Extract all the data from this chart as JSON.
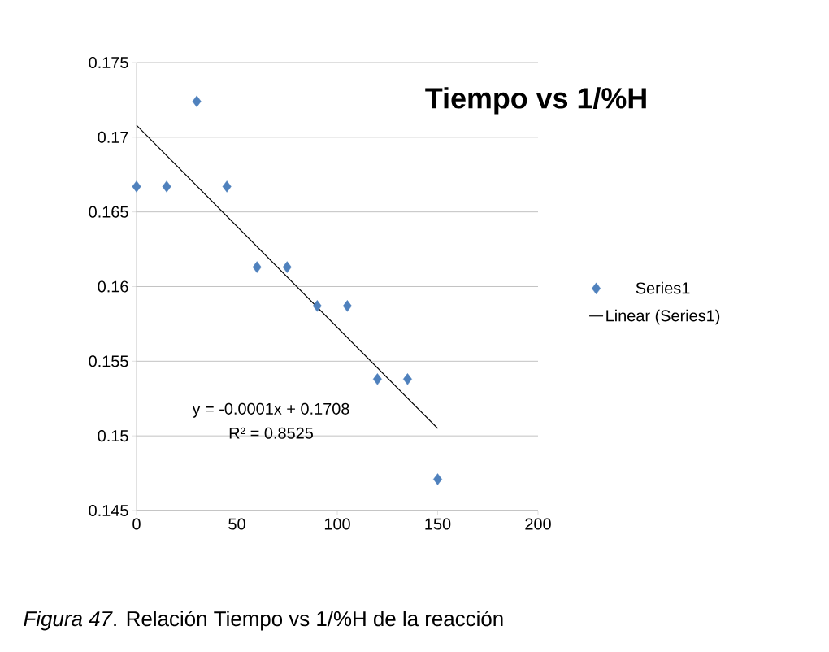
{
  "chart_data": {
    "type": "scatter",
    "title": "Tiempo vs 1/%H",
    "series": [
      {
        "name": "Series1",
        "color": "#4f81bd",
        "marker": "diamond",
        "x": [
          0,
          15,
          30,
          45,
          60,
          75,
          90,
          105,
          120,
          135,
          150
        ],
        "values": [
          0.1667,
          0.1667,
          0.1724,
          0.1667,
          0.1613,
          0.1613,
          0.1587,
          0.1587,
          0.1538,
          0.1538,
          0.1471
        ]
      },
      {
        "name": "Linear (Series1)",
        "type": "line",
        "color": "#000000",
        "marker": "none",
        "x": [
          0,
          150
        ],
        "values": [
          0.1708,
          0.1505
        ]
      }
    ],
    "xlim": [
      0,
      200
    ],
    "xticks": [
      0,
      50,
      100,
      150,
      200
    ],
    "ylim": [
      0.145,
      0.175
    ],
    "yticks": [
      0.145,
      0.15,
      0.155,
      0.16,
      0.165,
      0.17,
      0.175
    ],
    "grid": "y",
    "legend": "right",
    "annotations": [
      "y = -0.0001x + 0.1708",
      "R² = 0.8525",
      "*Figura 47*. Relación Tiempo vs 1/%H de la reacción"
    ]
  }
}
